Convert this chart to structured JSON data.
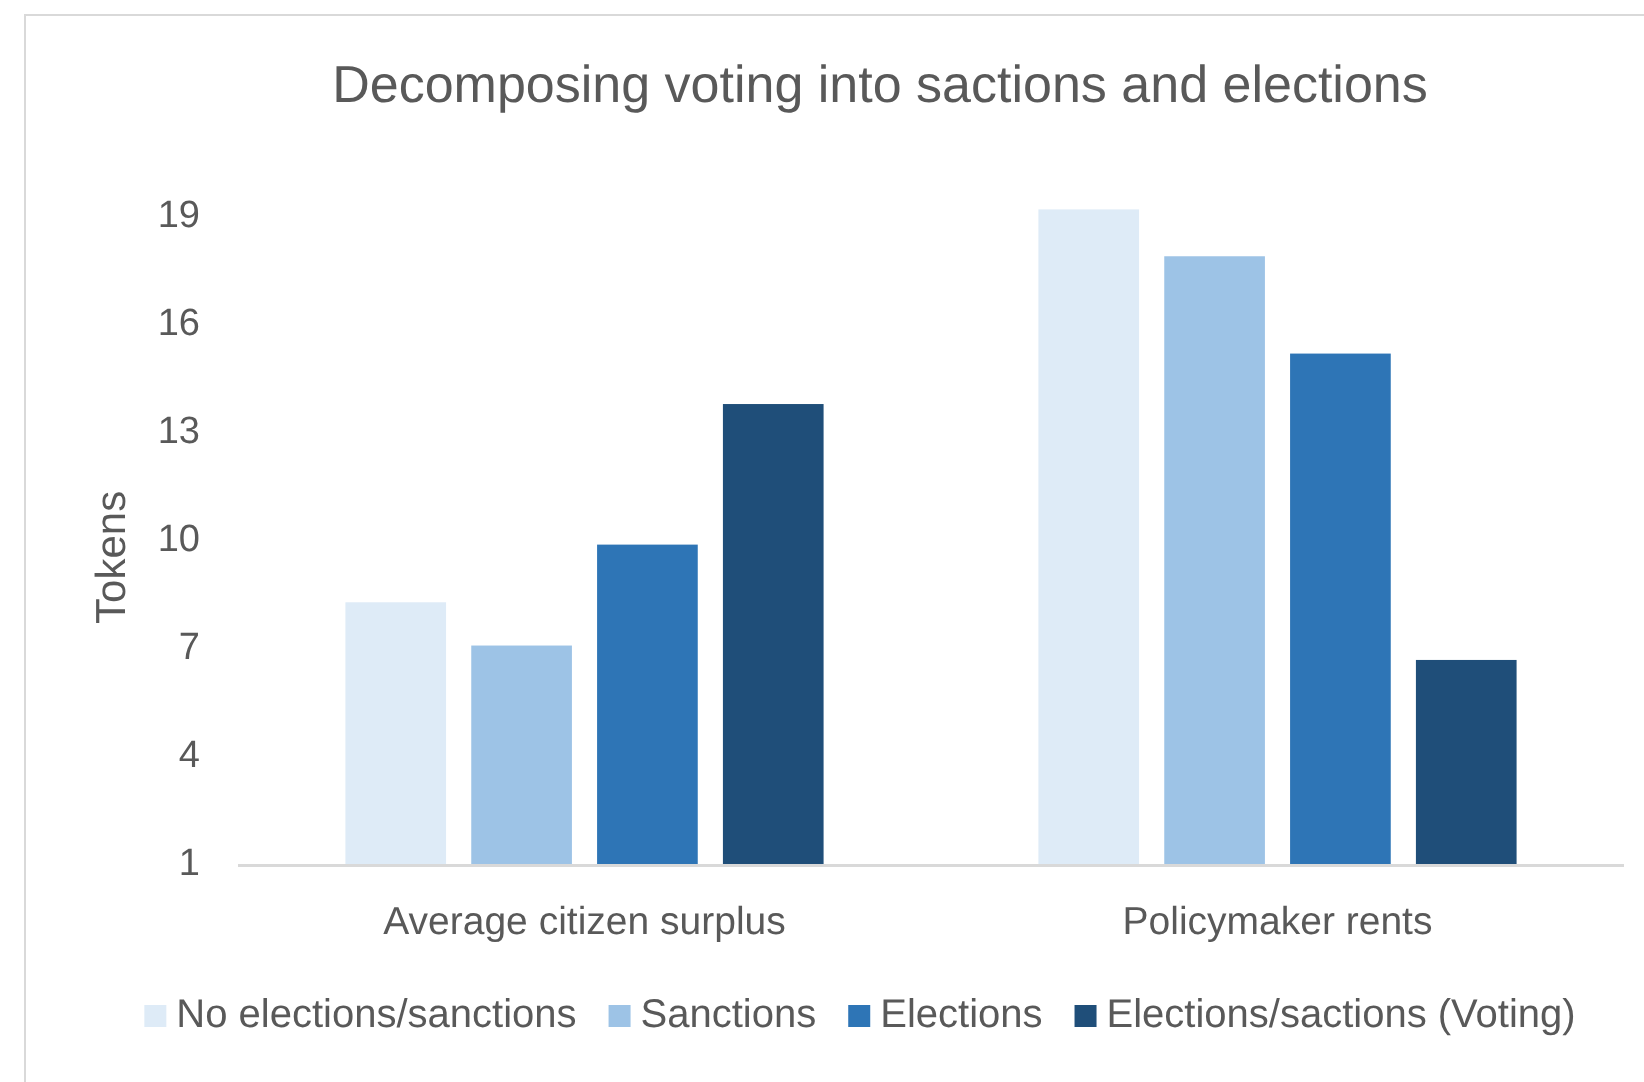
{
  "chart_data": {
    "type": "bar",
    "title": "Decomposing voting into sactions and elections",
    "ylabel": "Tokens",
    "categories": [
      "Average citizen surplus",
      "Policymaker rents"
    ],
    "series": [
      {
        "name": "No elections/sanctions",
        "color": "#deebf7",
        "values": [
          8.3,
          19.2
        ]
      },
      {
        "name": "Sanctions",
        "color": "#9dc3e6",
        "values": [
          7.1,
          17.9
        ]
      },
      {
        "name": "Elections",
        "color": "#2e75b6",
        "values": [
          9.9,
          15.2
        ]
      },
      {
        "name": "Elections/sactions (Voting)",
        "color": "#1f4e79",
        "values": [
          13.8,
          6.7
        ]
      }
    ],
    "ylim": [
      1,
      19.2
    ],
    "yticks": [
      1,
      4,
      7,
      10,
      13,
      16,
      19
    ],
    "grid": false,
    "legend": "bottom"
  }
}
